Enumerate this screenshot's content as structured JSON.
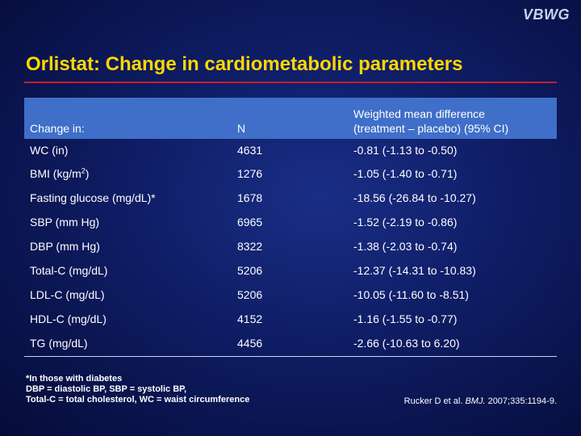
{
  "logo": "VBWG",
  "title": "Orlistat: Change in cardiometabolic parameters",
  "table": {
    "headers": {
      "col1": "Change in:",
      "col2": "N",
      "col3_line1": "Weighted mean difference",
      "col3_line2": "(treatment – placebo) (95% CI)"
    },
    "rows": [
      {
        "param": "WC (in)",
        "n": "4631",
        "diff": "-0.81 (-1.13 to -0.50)"
      },
      {
        "param_pre": "BMI (kg/m",
        "param_sup": "2",
        "param_post": ")",
        "n": "1276",
        "diff": "-1.05 (-1.40 to -0.71)"
      },
      {
        "param": "Fasting glucose (mg/dL)*",
        "n": "1678",
        "diff": "-18.56 (-26.84 to -10.27)"
      },
      {
        "param": "SBP (mm Hg)",
        "n": "6965",
        "diff": "-1.52 (-2.19 to -0.86)"
      },
      {
        "param": "DBP (mm Hg)",
        "n": "8322",
        "diff": "-1.38 (-2.03 to -0.74)"
      },
      {
        "param": "Total-C (mg/dL)",
        "n": "5206",
        "diff": "-12.37 (-14.31 to -10.83)"
      },
      {
        "param": "LDL-C (mg/dL)",
        "n": "5206",
        "diff": "-10.05 (-11.60 to -8.51)"
      },
      {
        "param": "HDL-C (mg/dL)",
        "n": "4152",
        "diff": "-1.16 (-1.55 to -0.77)"
      },
      {
        "param": "TG (mg/dL)",
        "n": "4456",
        "diff": "-2.66 (-10.63 to 6.20)"
      }
    ]
  },
  "footnotes": [
    "*In those with diabetes",
    "DBP = diastolic BP, SBP = systolic BP,",
    "Total-C = total cholesterol, WC = waist circumference"
  ],
  "citation": {
    "pre": "Rucker D et al. ",
    "journal": "BMJ.",
    "post": " 2007;335:1194-9."
  },
  "colors": {
    "background": "#0e1c63",
    "title": "#ffd700",
    "rule": "#c4202a",
    "header_bg": "#3f6fc8"
  }
}
